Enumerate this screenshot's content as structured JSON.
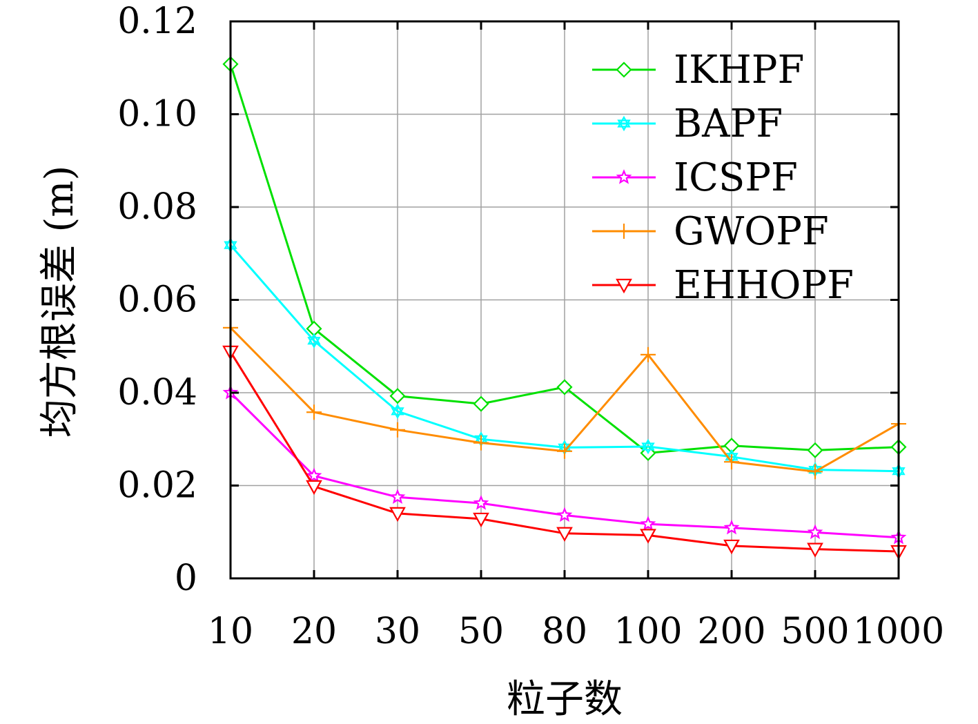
{
  "chart_data": {
    "type": "line",
    "categories": [
      "10",
      "20",
      "30",
      "50",
      "80",
      "100",
      "200",
      "500",
      "1000"
    ],
    "xlabel": "粒子数",
    "ylabel": "均方根误差 (m)",
    "ylim": [
      0,
      0.12
    ],
    "yticks": [
      0,
      0.02,
      0.04,
      0.06,
      0.08,
      0.1,
      0.12
    ],
    "ytick_labels": [
      "0",
      "0.02",
      "0.04",
      "0.06",
      "0.08",
      "0.10",
      "0.12"
    ],
    "grid": true,
    "legend_position": "top-right",
    "series": [
      {
        "name": "IKHPF",
        "color": "#00e000",
        "marker": "diamond",
        "values": [
          0.1108,
          0.0538,
          0.0393,
          0.0376,
          0.0412,
          0.027,
          0.0286,
          0.0276,
          0.0283
        ]
      },
      {
        "name": "BAPF",
        "color": "#00ffff",
        "marker": "hexagram",
        "values": [
          0.0718,
          0.0512,
          0.036,
          0.03,
          0.0282,
          0.0284,
          0.0262,
          0.0234,
          0.0231
        ]
      },
      {
        "name": "ICSPF",
        "color": "#ff00ff",
        "marker": "star",
        "values": [
          0.04,
          0.0221,
          0.0175,
          0.0162,
          0.0136,
          0.0117,
          0.0109,
          0.0099,
          0.0088
        ]
      },
      {
        "name": "GWOPF",
        "color": "#ff8c00",
        "marker": "plus",
        "values": [
          0.054,
          0.0358,
          0.032,
          0.0292,
          0.0274,
          0.0482,
          0.0251,
          0.023,
          0.0333
        ]
      },
      {
        "name": "EHHOPF",
        "color": "#ff0000",
        "marker": "triangle-down",
        "values": [
          0.0488,
          0.0198,
          0.014,
          0.0128,
          0.0097,
          0.0093,
          0.007,
          0.0063,
          0.0058
        ]
      }
    ]
  }
}
